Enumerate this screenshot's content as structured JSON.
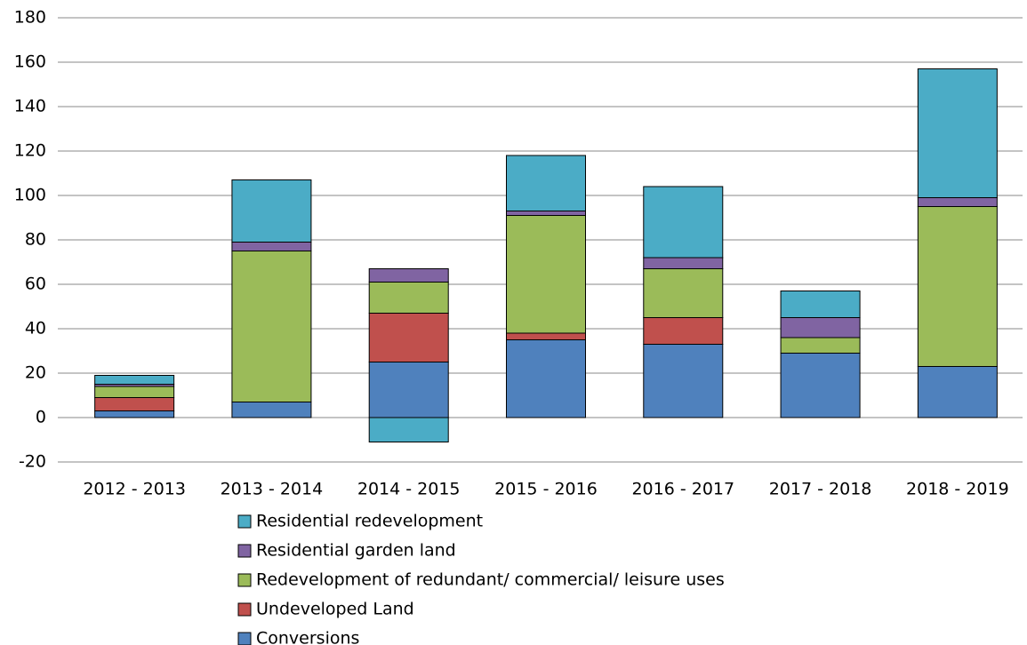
{
  "chart_data": {
    "type": "stacked_bar",
    "categories": [
      "2012 - 2013",
      "2013 - 2014",
      "2014 - 2015",
      "2015 - 2016",
      "2016 - 2017",
      "2017 - 2018",
      "2018 - 2019"
    ],
    "series": [
      {
        "name": "Conversions",
        "color": "#4f81bd",
        "values": [
          3,
          7,
          25,
          35,
          33,
          29,
          23
        ]
      },
      {
        "name": "Undeveloped Land",
        "color": "#c0504d",
        "values": [
          6,
          0,
          22,
          3,
          12,
          0,
          0
        ]
      },
      {
        "name": "Redevelopment of redundant/ commercial/ leisure uses",
        "color": "#9bbb59",
        "values": [
          5,
          68,
          14,
          53,
          22,
          7,
          72
        ]
      },
      {
        "name": "Residential garden land",
        "color": "#8064a2",
        "values": [
          1,
          4,
          6,
          2,
          5,
          9,
          4
        ]
      },
      {
        "name": "Residential redevelopment",
        "color": "#4bacc6",
        "values": [
          4,
          28,
          -11,
          25,
          32,
          12,
          58
        ]
      }
    ],
    "ylim": [
      -20,
      180
    ],
    "yticks": [
      -20,
      0,
      20,
      40,
      60,
      80,
      100,
      120,
      140,
      160,
      180
    ],
    "grid": true,
    "legend": "bottom"
  }
}
